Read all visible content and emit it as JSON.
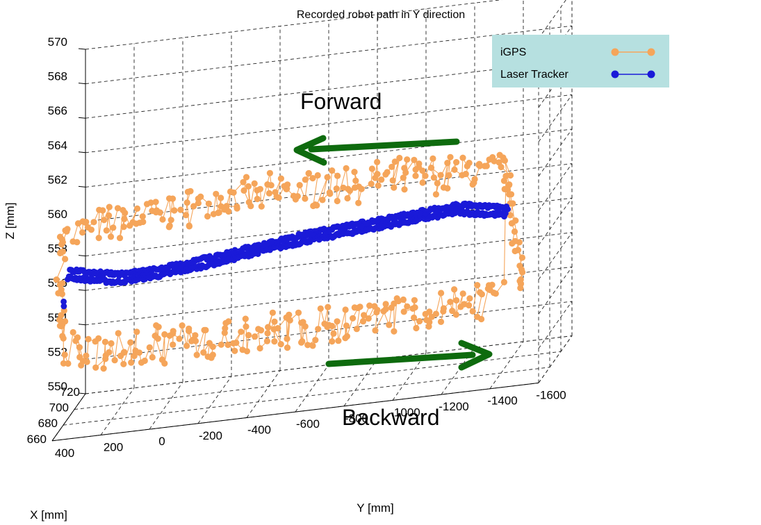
{
  "chart_data": {
    "type": "scatter",
    "title": "Recorded robot path in Y direction",
    "xlabel": "X [mm]",
    "ylabel": "Y [mm]",
    "zlabel": "Z [mm]",
    "grid": true,
    "legend_position": "top-right",
    "x_ticks": [
      "660",
      "680",
      "700",
      "720"
    ],
    "y_ticks": [
      "400",
      "200",
      "0",
      "-200",
      "-400",
      "-600",
      "-800",
      "-1000",
      "-1200",
      "-1400",
      "-1600"
    ],
    "z_ticks": [
      "550",
      "552",
      "554",
      "556",
      "558",
      "560",
      "562",
      "564",
      "566",
      "568",
      "570"
    ],
    "xlim": [
      660,
      720
    ],
    "ylim": [
      400,
      -1600
    ],
    "zlim": [
      550,
      570
    ],
    "annotations": [
      {
        "text": "Forward",
        "direction": "toward positive Y (upper track)"
      },
      {
        "text": "Backward",
        "direction": "toward negative Y (lower track)"
      }
    ],
    "series": [
      {
        "name": "iGPS",
        "color": "#f5a55a",
        "marker": "circle-line",
        "loop": {
          "forward_z_range": [
            559.5,
            563
          ],
          "backward_z_range": [
            552,
            556.5
          ],
          "y_range": [
            400,
            -1400
          ]
        }
      },
      {
        "name": "Laser Tracker",
        "color": "#1a1ad8",
        "marker": "circle-line",
        "path": {
          "y": [
            400,
            200,
            0,
            -200,
            -400,
            -600,
            -800,
            -1000,
            -1200,
            -1400
          ],
          "z": [
            558.2,
            557.6,
            557.7,
            558.0,
            558.4,
            558.7,
            558.9,
            559.1,
            559.3,
            558.8
          ]
        }
      }
    ]
  },
  "colors": {
    "legend_bg": "#b6e0e0",
    "arrow": "#0e6b0e"
  }
}
